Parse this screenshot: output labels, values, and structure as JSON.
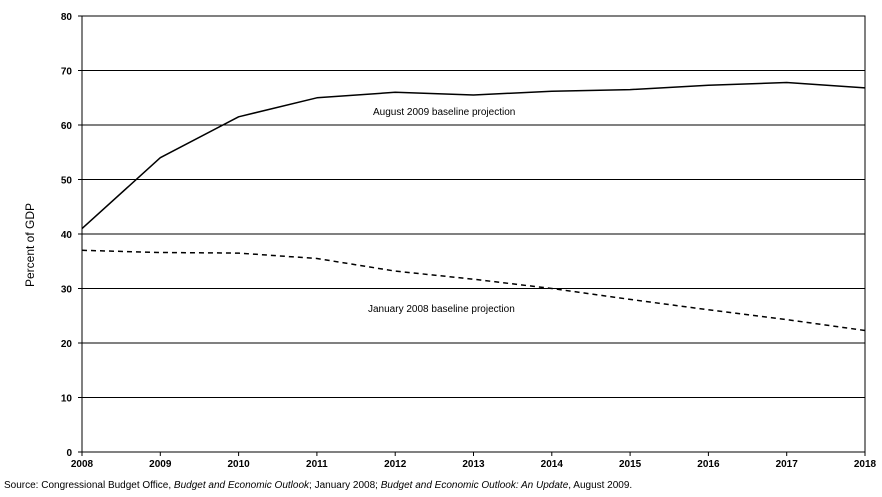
{
  "chart_data": {
    "type": "line",
    "title": "",
    "xlabel": "",
    "ylabel": "Percent of GDP",
    "x": [
      "2008",
      "2009",
      "2010",
      "2011",
      "2012",
      "2013",
      "2014",
      "2015",
      "2016",
      "2017",
      "2018"
    ],
    "ylim": [
      0,
      80
    ],
    "yticks": [
      "0",
      "10",
      "20",
      "30",
      "40",
      "50",
      "60",
      "70",
      "80"
    ],
    "grid": true,
    "series": [
      {
        "name": "August 2009 baseline projection",
        "style": "solid",
        "color": "#000000",
        "values": [
          41,
          54,
          61.5,
          65,
          66,
          65.5,
          66.2,
          66.5,
          67.3,
          67.8,
          66.8
        ]
      },
      {
        "name": "January 2008 baseline projection",
        "style": "dashed",
        "color": "#000000",
        "values": [
          37,
          36.6,
          36.5,
          35.5,
          33.2,
          31.7,
          30,
          28,
          26.1,
          24.3,
          22.3
        ]
      }
    ],
    "annotations": [
      {
        "text": "August 2009 baseline projection",
        "series": 0
      },
      {
        "text": "January 2008 baseline projection",
        "series": 1
      }
    ]
  },
  "source": {
    "prefix": "Source: Congressional Budget Office, ",
    "title1": "Budget and Economic Outlook",
    "mid": "; January 2008; ",
    "title2": "Budget and Economic Outlook: An Update",
    "suffix": ", August 2009."
  }
}
